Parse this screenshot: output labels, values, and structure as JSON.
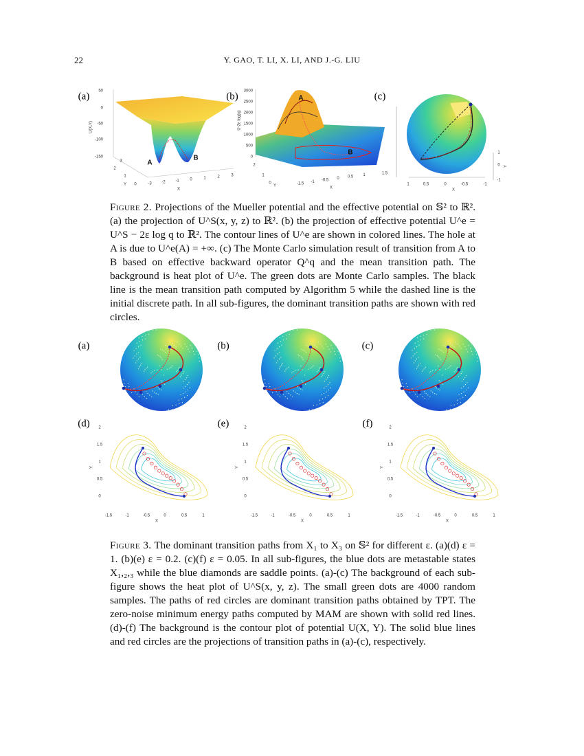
{
  "header": {
    "page_number": "22",
    "authors": "Y. GAO, T. LI, X. LI, AND J.-G. LIU"
  },
  "figure2": {
    "panels": [
      {
        "label": "(a)",
        "zticks": [
          "50",
          "0",
          "-50",
          "-100",
          "-150"
        ],
        "zlabel": "U(X,Y)",
        "points": [
          "A",
          "B"
        ],
        "yticks": [
          "3",
          "2",
          "1",
          "0"
        ],
        "ylabel": "Y",
        "xticks": [
          "-3",
          "-2",
          "-1",
          "0",
          "1",
          "2",
          "3"
        ],
        "xlabel": "X"
      },
      {
        "label": "(b)",
        "zticks": [
          "3000",
          "2500",
          "2000",
          "1500",
          "1000",
          "500",
          "0"
        ],
        "zlabel": "U-2ε log(q)",
        "points": [
          "A",
          "B"
        ],
        "yticks": [
          "2",
          "1",
          "0"
        ],
        "ylabel": "Y",
        "xticks": [
          "-1.5",
          "-1",
          "-0.5",
          "0",
          "0.5",
          "1",
          "1.5"
        ],
        "xlabel": "X"
      },
      {
        "label": "(c)",
        "xticks": [
          "1",
          "0.5",
          "0",
          "-0.5",
          "-1"
        ],
        "xlabel": "X",
        "yticks": [
          "1",
          "0",
          "-1"
        ],
        "ylabel": "Y"
      }
    ],
    "caption_label": "Figure 2.",
    "caption_text": "Projections of the Mueller potential and the effective potential on 𝕊² to ℝ². (a) the projection of U^S(x, y, z) to ℝ². (b) the projection of effective potential U^e = U^S − 2ε log q to ℝ². The contour lines of U^e are shown in colored lines. The hole at A is due to U^e(A) = +∞. (c) The Monte Carlo simulation result of transition from A to B based on effective backward operator Q^q and the mean transition path. The background is heat plot of U^e. The green dots are Monte Carlo samples. The black line is the mean transition path computed by Algorithm 5 while the dashed line is the initial discrete path. In all sub-figures, the dominant transition paths are shown with red circles."
  },
  "figure3": {
    "sphere_panels": [
      {
        "label": "(a)"
      },
      {
        "label": "(b)"
      },
      {
        "label": "(c)"
      }
    ],
    "contour_panels": [
      {
        "label": "(d)",
        "yticks": [
          "2",
          "1.5",
          "1",
          "0.5",
          "0"
        ],
        "ylabel": "Y",
        "xticks": [
          "-1.5",
          "-1",
          "-0.5",
          "0",
          "0.5",
          "1"
        ],
        "xlabel": "X"
      },
      {
        "label": "(e)",
        "yticks": [
          "2",
          "1.5",
          "1",
          "0.5",
          "0"
        ],
        "ylabel": "Y",
        "xticks": [
          "-1.5",
          "-1",
          "-0.5",
          "0",
          "0.5",
          "1"
        ],
        "xlabel": "X"
      },
      {
        "label": "(f)",
        "yticks": [
          "2",
          "1.5",
          "1",
          "0.5",
          "0"
        ],
        "ylabel": "Y",
        "xticks": [
          "-1.5",
          "-1",
          "-0.5",
          "0",
          "0.5",
          "1"
        ],
        "xlabel": "X"
      }
    ],
    "caption_label": "Figure 3.",
    "caption_text": "The dominant transition paths from X₁ to X₃ on 𝕊² for different ε. (a)(d) ε = 1. (b)(e) ε = 0.2. (c)(f) ε = 0.05. In all sub-figures, the blue dots are metastable states X₁,₂,₃ while the blue diamonds are saddle points. (a)-(c) The background of each sub-figure shows the heat plot of U^S(x, y, z). The small green dots are 4000 random samples. The paths of red circles are dominant transition paths obtained by TPT. The zero-noise minimum energy paths computed by MAM are shown with solid red lines. (d)-(f) The background is the contour plot of potential U(X, Y). The solid blue lines and red circles are the projections of transition paths in (a)-(c), respectively."
  }
}
